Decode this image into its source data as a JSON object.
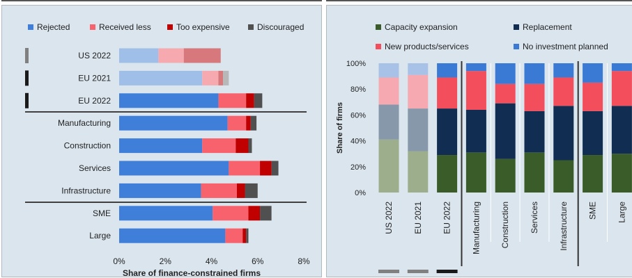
{
  "chart_data": [
    {
      "type": "bar",
      "orientation": "horizontal",
      "stacked": true,
      "xlabel": "Share of finance-constrained firms",
      "xlim": [
        0,
        8
      ],
      "xticks": [
        "0%",
        "2%",
        "4%",
        "6%",
        "8%"
      ],
      "legend_position": "top",
      "categories": [
        "US 2022",
        "EU 2021",
        "EU 2022",
        "Manufacturing",
        "Construction",
        "Services",
        "Infrastructure",
        "SME",
        "Large"
      ],
      "series": [
        {
          "name": "Rejected",
          "color": "#3f7fd9",
          "light_color": "#9fbfe8",
          "values": [
            1.7,
            3.6,
            4.3,
            4.7,
            3.6,
            4.75,
            3.55,
            4.05,
            4.6
          ]
        },
        {
          "name": "Received less",
          "color": "#f8626c",
          "light_color": "#f6aab0",
          "values": [
            1.1,
            0.7,
            1.2,
            0.8,
            1.45,
            1.35,
            1.55,
            1.55,
            0.75
          ]
        },
        {
          "name": "Too expensive",
          "color": "#c00000",
          "light_color": "#d6787c",
          "values": [
            1.6,
            0.2,
            0.35,
            0.2,
            0.55,
            0.5,
            0.35,
            0.5,
            0.15
          ]
        },
        {
          "name": "Discouraged",
          "color": "#505050",
          "light_color": "#b8b8b8",
          "values": [
            0,
            0.25,
            0.35,
            0.25,
            0.15,
            0.3,
            0.55,
            0.5,
            0.1
          ]
        }
      ],
      "light_categories": [
        "US 2022",
        "EU 2021"
      ]
    },
    {
      "type": "bar",
      "stacked": true,
      "ylabel": "Share of firms",
      "ylim": [
        0,
        100
      ],
      "yticks": [
        "0%",
        "20%",
        "40%",
        "60%",
        "80%",
        "100%"
      ],
      "legend_position": "top",
      "categories": [
        "US 2022",
        "EU 2021",
        "EU 2022",
        "Manufacturing",
        "Construction",
        "Services",
        "Infrastructure",
        "SME",
        "Large"
      ],
      "series": [
        {
          "name": "Capacity expansion",
          "color": "#3a5c28",
          "light_color": "#9cae8c",
          "values": [
            41,
            32,
            29,
            31,
            26,
            31,
            25,
            29,
            30
          ]
        },
        {
          "name": "Replacement",
          "color": "#112d52",
          "light_color": "#8898ab",
          "values": [
            27,
            33,
            36,
            33,
            43,
            32,
            42,
            34,
            37
          ]
        },
        {
          "name": "New products/services",
          "color": "#f24e5c",
          "light_color": "#f6a9b0",
          "values": [
            21,
            26,
            24,
            30,
            15,
            21,
            22,
            22,
            27
          ]
        },
        {
          "name": "No investment planned",
          "color": "#3a7ad4",
          "light_color": "#a7c2e6",
          "values": [
            11,
            9,
            11,
            6,
            16,
            16,
            11,
            15,
            6
          ]
        }
      ],
      "light_categories": [
        "US 2022",
        "EU 2021"
      ]
    }
  ]
}
